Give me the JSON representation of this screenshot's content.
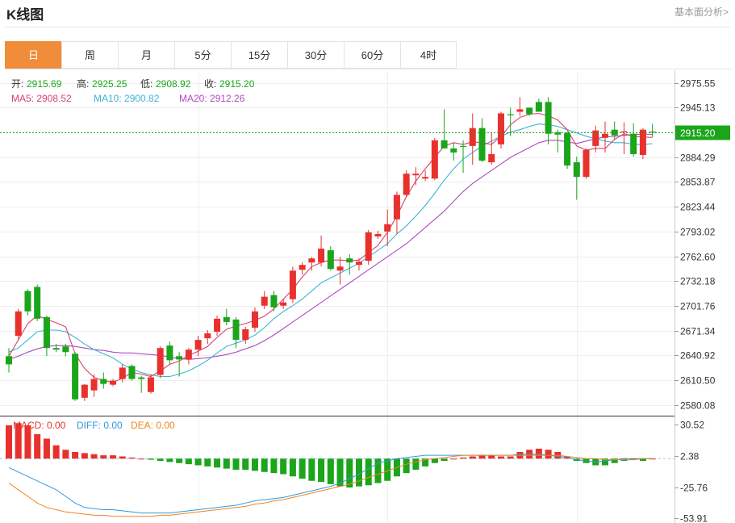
{
  "header": {
    "title": "K线图",
    "link": "基本面分析>"
  },
  "tabs": [
    "日",
    "周",
    "月",
    "5分",
    "15分",
    "30分",
    "60分",
    "4时"
  ],
  "active_tab": 0,
  "ohlc_info": {
    "open_label": "开:",
    "open": "2915.69",
    "high_label": "高:",
    "high": "2925.25",
    "low_label": "低:",
    "low": "2908.92",
    "close_label": "收:",
    "close": "2915.20"
  },
  "ma_info": {
    "ma5": "MA5: 2908.52",
    "ma10": "MA10: 2900.82",
    "ma20": "MA20: 2912.26"
  },
  "macd_info": {
    "macd": "MACD: 0.00",
    "diff": "DIFF: 0.00",
    "dea": "DEA: 0.00"
  },
  "last_price_label": "2915.20",
  "colors": {
    "up": "#e8312c",
    "down": "#1aa51a",
    "ma5": "#d9416e",
    "ma10": "#3bb5d6",
    "ma20": "#b04ac2",
    "diff": "#3399dd",
    "dea": "#f08320",
    "accent": "#f08c3a"
  },
  "chart_data": [
    {
      "type": "candlestick",
      "title": "",
      "y_ticks": [
        2975.55,
        2945.13,
        2884.29,
        2853.87,
        2823.44,
        2793.02,
        2762.6,
        2732.18,
        2701.76,
        2671.34,
        2640.92,
        2610.5,
        2580.08
      ],
      "ylim": [
        2567,
        2990
      ],
      "series_names": [
        "MA5",
        "MA10",
        "MA20"
      ],
      "candles": [
        [
          2640,
          2650,
          2620,
          2630
        ],
        [
          2665,
          2698,
          2660,
          2695
        ],
        [
          2720,
          2722,
          2690,
          2695
        ],
        [
          2725,
          2728,
          2683,
          2686
        ],
        [
          2688,
          2690,
          2640,
          2650
        ],
        [
          2650,
          2655,
          2645,
          2648
        ],
        [
          2652,
          2655,
          2640,
          2645
        ],
        [
          2643,
          2645,
          2585,
          2587
        ],
        [
          2589,
          2606,
          2585,
          2605
        ],
        [
          2598,
          2618,
          2590,
          2612
        ],
        [
          2612,
          2620,
          2600,
          2606
        ],
        [
          2605,
          2612,
          2603,
          2610
        ],
        [
          2612,
          2630,
          2608,
          2626
        ],
        [
          2628,
          2630,
          2610,
          2612
        ],
        [
          2614,
          2616,
          2595,
          2612
        ],
        [
          2596,
          2618,
          2594,
          2614
        ],
        [
          2617,
          2652,
          2613,
          2650
        ],
        [
          2653,
          2658,
          2630,
          2635
        ],
        [
          2640,
          2645,
          2615,
          2636
        ],
        [
          2636,
          2650,
          2630,
          2648
        ],
        [
          2648,
          2665,
          2640,
          2660
        ],
        [
          2662,
          2672,
          2655,
          2668
        ],
        [
          2670,
          2690,
          2665,
          2686
        ],
        [
          2688,
          2698,
          2678,
          2682
        ],
        [
          2685,
          2688,
          2650,
          2660
        ],
        [
          2660,
          2676,
          2655,
          2673
        ],
        [
          2675,
          2700,
          2670,
          2695
        ],
        [
          2702,
          2720,
          2698,
          2713
        ],
        [
          2715,
          2720,
          2695,
          2700
        ],
        [
          2702,
          2710,
          2698,
          2706
        ],
        [
          2710,
          2750,
          2705,
          2745
        ],
        [
          2746,
          2755,
          2740,
          2752
        ],
        [
          2755,
          2762,
          2745,
          2760
        ],
        [
          2755,
          2788,
          2750,
          2772
        ],
        [
          2770,
          2775,
          2745,
          2747
        ],
        [
          2745,
          2762,
          2728,
          2750
        ],
        [
          2760,
          2765,
          2740,
          2755
        ],
        [
          2752,
          2760,
          2745,
          2756
        ],
        [
          2757,
          2795,
          2752,
          2792
        ],
        [
          2787,
          2794,
          2784,
          2790
        ],
        [
          2793,
          2820,
          2775,
          2802
        ],
        [
          2808,
          2842,
          2790,
          2838
        ],
        [
          2838,
          2868,
          2835,
          2864
        ],
        [
          2862,
          2872,
          2850,
          2864
        ],
        [
          2858,
          2868,
          2855,
          2860
        ],
        [
          2858,
          2908,
          2856,
          2905
        ],
        [
          2905,
          2943,
          2895,
          2895
        ],
        [
          2895,
          2902,
          2880,
          2890
        ],
        [
          2898,
          2905,
          2865,
          2897
        ],
        [
          2898,
          2938,
          2875,
          2920
        ],
        [
          2920,
          2932,
          2878,
          2880
        ],
        [
          2878,
          2915,
          2875,
          2888
        ],
        [
          2900,
          2940,
          2895,
          2938
        ],
        [
          2937,
          2945,
          2910,
          2936
        ],
        [
          2940,
          2958,
          2935,
          2943
        ],
        [
          2945,
          2945,
          2935,
          2937
        ],
        [
          2952,
          2956,
          2940,
          2940
        ],
        [
          2952,
          2958,
          2900,
          2913
        ],
        [
          2915,
          2918,
          2890,
          2912
        ],
        [
          2914,
          2916,
          2870,
          2874
        ],
        [
          2878,
          2885,
          2832,
          2860
        ],
        [
          2860,
          2895,
          2858,
          2893
        ],
        [
          2898,
          2923,
          2890,
          2917
        ],
        [
          2908,
          2928,
          2890,
          2913
        ],
        [
          2918,
          2928,
          2906,
          2911
        ],
        [
          2916,
          2927,
          2888,
          2916
        ],
        [
          2913,
          2926,
          2885,
          2888
        ],
        [
          2887,
          2920,
          2882,
          2918
        ],
        [
          2915.69,
          2925.25,
          2908.92,
          2915.2
        ]
      ],
      "ma5": [
        2640,
        2660,
        2680,
        2690,
        2685,
        2681,
        2676,
        2643,
        2625,
        2614,
        2610,
        2608,
        2613,
        2620,
        2618,
        2615,
        2622,
        2630,
        2634,
        2641,
        2646,
        2652,
        2663,
        2673,
        2677,
        2680,
        2684,
        2689,
        2698,
        2710,
        2722,
        2737,
        2750,
        2755,
        2758,
        2758,
        2757,
        2758,
        2767,
        2776,
        2792,
        2812,
        2836,
        2855,
        2870,
        2884,
        2898,
        2902,
        2900,
        2903,
        2902,
        2900,
        2910,
        2924,
        2933,
        2937,
        2938,
        2935,
        2930,
        2918,
        2898,
        2893,
        2895,
        2895,
        2906,
        2913,
        2910,
        2909,
        2908.52
      ],
      "ma10": [
        2645,
        2650,
        2660,
        2670,
        2672,
        2672,
        2670,
        2663,
        2655,
        2648,
        2643,
        2638,
        2630,
        2624,
        2620,
        2617,
        2615,
        2615,
        2618,
        2622,
        2628,
        2635,
        2644,
        2652,
        2656,
        2660,
        2666,
        2675,
        2686,
        2695,
        2702,
        2710,
        2720,
        2730,
        2736,
        2742,
        2748,
        2754,
        2762,
        2770,
        2778,
        2790,
        2800,
        2812,
        2825,
        2840,
        2856,
        2870,
        2882,
        2890,
        2898,
        2904,
        2910,
        2915,
        2918,
        2922,
        2925,
        2924,
        2922,
        2918,
        2914,
        2910,
        2907,
        2904,
        2902,
        2902,
        2900,
        2900,
        2900.82
      ],
      "ma20": [
        2636,
        2640,
        2645,
        2649,
        2652,
        2653,
        2653,
        2652,
        2650,
        2648,
        2647,
        2645,
        2644,
        2644,
        2643,
        2642,
        2641,
        2639,
        2637,
        2636,
        2637,
        2638,
        2640,
        2642,
        2645,
        2649,
        2653,
        2659,
        2666,
        2674,
        2682,
        2690,
        2698,
        2706,
        2714,
        2722,
        2730,
        2738,
        2746,
        2754,
        2762,
        2770,
        2778,
        2788,
        2798,
        2808,
        2818,
        2830,
        2842,
        2852,
        2860,
        2868,
        2876,
        2884,
        2890,
        2896,
        2902,
        2905,
        2905,
        2903,
        2901,
        2904,
        2907,
        2909,
        2910,
        2911,
        2912,
        2912.5,
        2912.26
      ]
    },
    {
      "type": "macd",
      "title": "",
      "y_ticks": [
        30.52,
        2.38,
        -25.76,
        -53.91
      ],
      "ylim": [
        -58,
        38
      ],
      "hist": [
        30,
        32,
        30,
        22,
        18,
        12,
        8,
        6,
        5,
        4,
        3,
        3,
        2,
        1,
        0,
        -1,
        -2,
        -3,
        -4,
        -5,
        -6,
        -7,
        -8,
        -9,
        -10,
        -10,
        -11,
        -12,
        -13,
        -14,
        -16,
        -18,
        -20,
        -21,
        -23,
        -25,
        -26,
        -25,
        -24,
        -22,
        -20,
        -16,
        -13,
        -10,
        -7,
        -4,
        -2,
        0,
        1,
        2,
        3,
        3,
        2,
        2,
        6,
        8,
        9,
        8,
        6,
        2,
        -2,
        -4,
        -6,
        -6,
        -4,
        -2,
        -1,
        -2,
        0
      ],
      "diff": [
        -8,
        -12,
        -16,
        -20,
        -24,
        -28,
        -34,
        -40,
        -44,
        -45,
        -46,
        -46,
        -47,
        -48,
        -49,
        -49,
        -49,
        -49,
        -48,
        -47,
        -46,
        -45,
        -44,
        -43,
        -42,
        -40,
        -38,
        -37,
        -36,
        -35,
        -33,
        -31,
        -29,
        -27,
        -25,
        -22,
        -18,
        -14,
        -9,
        -4,
        -2,
        0,
        1,
        2,
        3,
        3,
        3,
        3,
        3,
        3,
        3,
        3,
        3,
        3,
        4,
        4,
        4,
        3,
        2,
        1,
        -1,
        -2,
        -3,
        -2,
        -1,
        0,
        0,
        0,
        0
      ],
      "dea": [
        -22,
        -28,
        -34,
        -40,
        -44,
        -46,
        -48,
        -49,
        -50,
        -51,
        -51,
        -52,
        -52,
        -52,
        -52,
        -52,
        -51,
        -51,
        -50,
        -49,
        -48,
        -47,
        -46,
        -45,
        -44,
        -43,
        -41,
        -40,
        -38,
        -37,
        -35,
        -33,
        -31,
        -29,
        -27,
        -25,
        -23,
        -20,
        -17,
        -14,
        -11,
        -8,
        -5,
        -3,
        -1,
        0,
        1,
        2,
        3,
        3,
        3,
        3,
        3,
        3,
        3,
        3,
        3,
        3,
        3,
        2,
        1,
        0,
        0,
        -1,
        -1,
        -1,
        -1,
        0,
        0
      ]
    }
  ]
}
